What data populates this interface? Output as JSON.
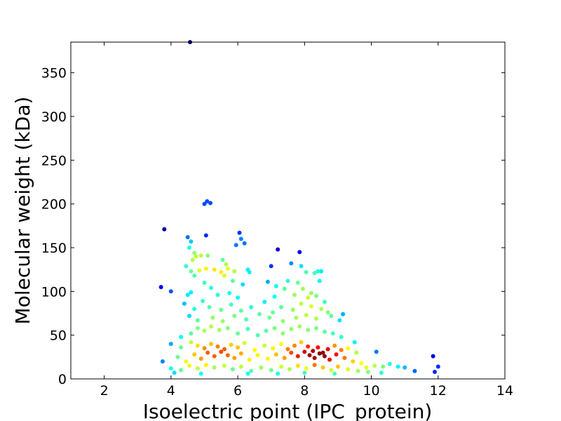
{
  "chart_data": {
    "type": "scatter",
    "title": "",
    "xlabel": "Isoelectric point (IPC_protein)",
    "ylabel": "Molecular weight (kDa)",
    "xlim": [
      1,
      14
    ],
    "ylim": [
      0,
      385
    ],
    "xticks": [
      2,
      4,
      6,
      8,
      10,
      12,
      14
    ],
    "yticks": [
      0,
      50,
      100,
      150,
      200,
      250,
      300,
      350
    ],
    "grid": false,
    "legend": "none",
    "color_encoding": "point density (jet colormap: blue = low, red = high)",
    "colormap": [
      "#00007f",
      "#0000ff",
      "#007fff",
      "#00ffff",
      "#7fff7f",
      "#ffff00",
      "#ff7f00",
      "#ff0000",
      "#7f0000"
    ],
    "points": [
      [
        4.57,
        385
      ],
      [
        5.0,
        200
      ],
      [
        5.08,
        203
      ],
      [
        5.18,
        201
      ],
      [
        3.8,
        171
      ],
      [
        4.5,
        162
      ],
      [
        4.6,
        157
      ],
      [
        4.55,
        150
      ],
      [
        4.7,
        144
      ],
      [
        5.05,
        164
      ],
      [
        6.05,
        167
      ],
      [
        6.1,
        160
      ],
      [
        6.2,
        155
      ],
      [
        5.95,
        153
      ],
      [
        7.2,
        148
      ],
      [
        7.85,
        145
      ],
      [
        4.75,
        140
      ],
      [
        4.9,
        141
      ],
      [
        5.1,
        141
      ],
      [
        4.65,
        136
      ],
      [
        5.55,
        136
      ],
      [
        5.65,
        131
      ],
      [
        6.3,
        125
      ],
      [
        6.35,
        122
      ],
      [
        7.0,
        129
      ],
      [
        7.6,
        132
      ],
      [
        7.9,
        129
      ],
      [
        8.05,
        122
      ],
      [
        8.3,
        121
      ],
      [
        8.4,
        123
      ],
      [
        8.5,
        123
      ],
      [
        4.45,
        129
      ],
      [
        4.6,
        123
      ],
      [
        4.85,
        124
      ],
      [
        5.05,
        126
      ],
      [
        5.3,
        125
      ],
      [
        5.5,
        122
      ],
      [
        5.7,
        126
      ],
      [
        5.9,
        123
      ],
      [
        4.7,
        118
      ],
      [
        5.6,
        118
      ],
      [
        5.85,
        112
      ],
      [
        6.15,
        108
      ],
      [
        7.15,
        106
      ],
      [
        7.5,
        112
      ],
      [
        7.8,
        110
      ],
      [
        7.95,
        103
      ],
      [
        8.2,
        98
      ],
      [
        8.45,
        112
      ],
      [
        3.7,
        105
      ],
      [
        4.0,
        100
      ],
      [
        4.5,
        96
      ],
      [
        4.6,
        99
      ],
      [
        5.0,
        110
      ],
      [
        5.2,
        104
      ],
      [
        5.4,
        96
      ],
      [
        5.75,
        98
      ],
      [
        6.0,
        93
      ],
      [
        6.9,
        111
      ],
      [
        7.1,
        94
      ],
      [
        7.4,
        103
      ],
      [
        7.7,
        96
      ],
      [
        8.1,
        93
      ],
      [
        8.35,
        95
      ],
      [
        8.6,
        88
      ],
      [
        4.4,
        86
      ],
      [
        4.7,
        80
      ],
      [
        4.95,
        89
      ],
      [
        5.15,
        82
      ],
      [
        5.5,
        79
      ],
      [
        5.8,
        85
      ],
      [
        6.1,
        78
      ],
      [
        6.4,
        82
      ],
      [
        6.8,
        88
      ],
      [
        7.05,
        76
      ],
      [
        7.3,
        82
      ],
      [
        7.65,
        79
      ],
      [
        7.9,
        86
      ],
      [
        8.2,
        83
      ],
      [
        8.5,
        80
      ],
      [
        8.7,
        76
      ],
      [
        4.55,
        72
      ],
      [
        4.8,
        67
      ],
      [
        5.25,
        70
      ],
      [
        5.55,
        66
      ],
      [
        5.9,
        72
      ],
      [
        6.25,
        68
      ],
      [
        6.65,
        74
      ],
      [
        6.95,
        70
      ],
      [
        7.35,
        66
      ],
      [
        7.75,
        70
      ],
      [
        8.05,
        73
      ],
      [
        8.35,
        69
      ],
      [
        8.8,
        72
      ],
      [
        9.15,
        74
      ],
      [
        9.05,
        67
      ],
      [
        4.3,
        48
      ],
      [
        4.6,
        52
      ],
      [
        4.8,
        58
      ],
      [
        5.0,
        55
      ],
      [
        5.2,
        60
      ],
      [
        5.45,
        56
      ],
      [
        5.7,
        58
      ],
      [
        6.0,
        52
      ],
      [
        6.3,
        57
      ],
      [
        6.6,
        50
      ],
      [
        6.85,
        55
      ],
      [
        7.1,
        58
      ],
      [
        7.35,
        52
      ],
      [
        7.6,
        57
      ],
      [
        7.85,
        60
      ],
      [
        8.1,
        56
      ],
      [
        8.35,
        58
      ],
      [
        8.6,
        54
      ],
      [
        8.85,
        52
      ],
      [
        9.1,
        48
      ],
      [
        9.5,
        42
      ],
      [
        4.0,
        40
      ],
      [
        4.3,
        36
      ],
      [
        4.6,
        42
      ],
      [
        4.8,
        38
      ],
      [
        5.0,
        35
      ],
      [
        5.2,
        40
      ],
      [
        5.4,
        37
      ],
      [
        5.6,
        34
      ],
      [
        5.8,
        39
      ],
      [
        6.0,
        36
      ],
      [
        6.2,
        41
      ],
      [
        6.5,
        33
      ],
      [
        6.8,
        38
      ],
      [
        7.05,
        35
      ],
      [
        7.3,
        40
      ],
      [
        7.5,
        34
      ],
      [
        7.7,
        38
      ],
      [
        7.9,
        42
      ],
      [
        8.1,
        37
      ],
      [
        8.25,
        32
      ],
      [
        8.4,
        36
      ],
      [
        8.55,
        30
      ],
      [
        8.7,
        34
      ],
      [
        8.9,
        38
      ],
      [
        9.1,
        33
      ],
      [
        9.3,
        35
      ],
      [
        9.55,
        30
      ],
      [
        4.2,
        25
      ],
      [
        4.45,
        20
      ],
      [
        4.7,
        28
      ],
      [
        4.9,
        23
      ],
      [
        5.1,
        30
      ],
      [
        5.3,
        26
      ],
      [
        5.5,
        31
      ],
      [
        5.7,
        27
      ],
      [
        5.9,
        24
      ],
      [
        6.1,
        29
      ],
      [
        6.35,
        22
      ],
      [
        6.6,
        27
      ],
      [
        6.9,
        23
      ],
      [
        7.15,
        28
      ],
      [
        7.4,
        24
      ],
      [
        7.6,
        30
      ],
      [
        7.8,
        26
      ],
      [
        8.0,
        31
      ],
      [
        8.15,
        27
      ],
      [
        8.3,
        24
      ],
      [
        8.45,
        29
      ],
      [
        8.6,
        26
      ],
      [
        8.75,
        22
      ],
      [
        8.95,
        28
      ],
      [
        9.2,
        24
      ],
      [
        9.45,
        20
      ],
      [
        9.7,
        18
      ],
      [
        3.75,
        20
      ],
      [
        4.0,
        12
      ],
      [
        4.3,
        10
      ],
      [
        4.55,
        15
      ],
      [
        4.8,
        12
      ],
      [
        5.05,
        16
      ],
      [
        5.3,
        13
      ],
      [
        5.6,
        15
      ],
      [
        5.85,
        11
      ],
      [
        6.1,
        14
      ],
      [
        6.4,
        9
      ],
      [
        6.7,
        13
      ],
      [
        7.0,
        10
      ],
      [
        7.3,
        14
      ],
      [
        7.55,
        11
      ],
      [
        7.8,
        15
      ],
      [
        8.05,
        12
      ],
      [
        8.3,
        16
      ],
      [
        8.55,
        13
      ],
      [
        8.8,
        10
      ],
      [
        9.0,
        14
      ],
      [
        9.3,
        11
      ],
      [
        9.6,
        9
      ],
      [
        9.85,
        13
      ],
      [
        10.1,
        15
      ],
      [
        10.15,
        31
      ],
      [
        10.35,
        14
      ],
      [
        10.55,
        17
      ],
      [
        10.8,
        14
      ],
      [
        11.0,
        13
      ],
      [
        11.3,
        9
      ],
      [
        11.85,
        26
      ],
      [
        12.0,
        14
      ],
      [
        11.9,
        8
      ],
      [
        10.3,
        7
      ],
      [
        9.9,
        8
      ],
      [
        4.1,
        7
      ],
      [
        4.9,
        6
      ],
      [
        6.3,
        6
      ],
      [
        7.2,
        6
      ],
      [
        8.0,
        7
      ],
      [
        8.9,
        6
      ]
    ]
  }
}
